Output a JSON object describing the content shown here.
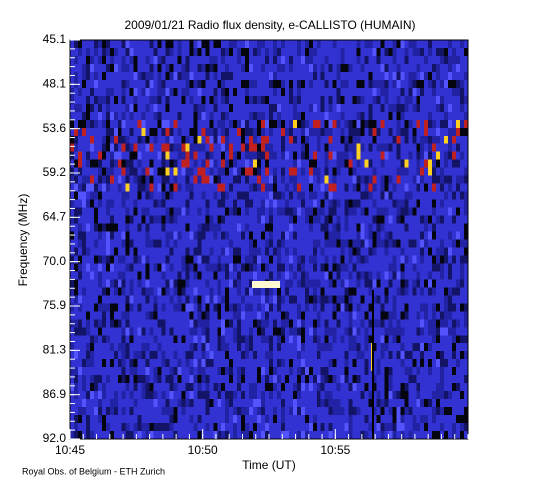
{
  "chart_data": {
    "type": "spectrogram",
    "title": "2009/01/21  Radio flux density, e-CALLISTO (HUMAIN)",
    "x_label": "Time (UT)",
    "y_label": "Frequency (MHz)",
    "credit": "Royal Obs. of Belgium - ETH Zurich",
    "xlim": [
      "10:45",
      "11:00"
    ],
    "xticks": [
      "10:45",
      "10:50",
      "10:55"
    ],
    "y_categories": [
      45.1,
      48.1,
      53.6,
      59.2,
      64.7,
      70.0,
      75.9,
      81.3,
      86.9,
      92.0
    ]
  }
}
